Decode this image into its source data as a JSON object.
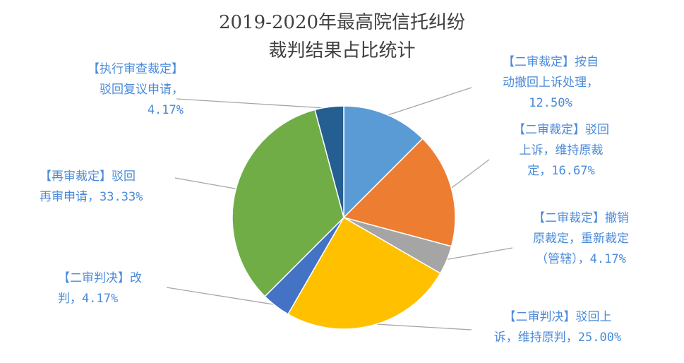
{
  "chart_data": {
    "type": "pie",
    "title_lines": [
      "2019-2020年最高院信托纠纷",
      "裁判结果占比统计"
    ],
    "slices": [
      {
        "label_lines": [
          "【二审裁定】按自",
          "动撤回上诉处理，",
          "12.50%"
        ],
        "value": 12.5,
        "color": "#5b9bd5"
      },
      {
        "label_lines": [
          "【二审裁定】驳回",
          "上诉，维持原裁",
          "定，16.67%"
        ],
        "value": 16.67,
        "color": "#ed7d31"
      },
      {
        "label_lines": [
          "【二审裁定】撤销",
          "原裁定，重新裁定",
          "（管辖），4.17%"
        ],
        "value": 4.17,
        "color": "#a5a5a5"
      },
      {
        "label_lines": [
          "【二审判决】驳回上",
          "诉，维持原判，25.00%"
        ],
        "value": 25.0,
        "color": "#ffc000"
      },
      {
        "label_lines": [
          "【二审判决】改",
          "判，4.17%"
        ],
        "value": 4.17,
        "color": "#4472c4"
      },
      {
        "label_lines": [
          "【再审裁定】驳回",
          "再审申请，33.33%"
        ],
        "value": 33.33,
        "color": "#70ad47"
      },
      {
        "label_lines": [
          "【执行审查裁定】",
          "驳回复议申请，",
          "4.17%"
        ],
        "value": 4.17,
        "color": "#255e91"
      }
    ],
    "legend": "none"
  }
}
